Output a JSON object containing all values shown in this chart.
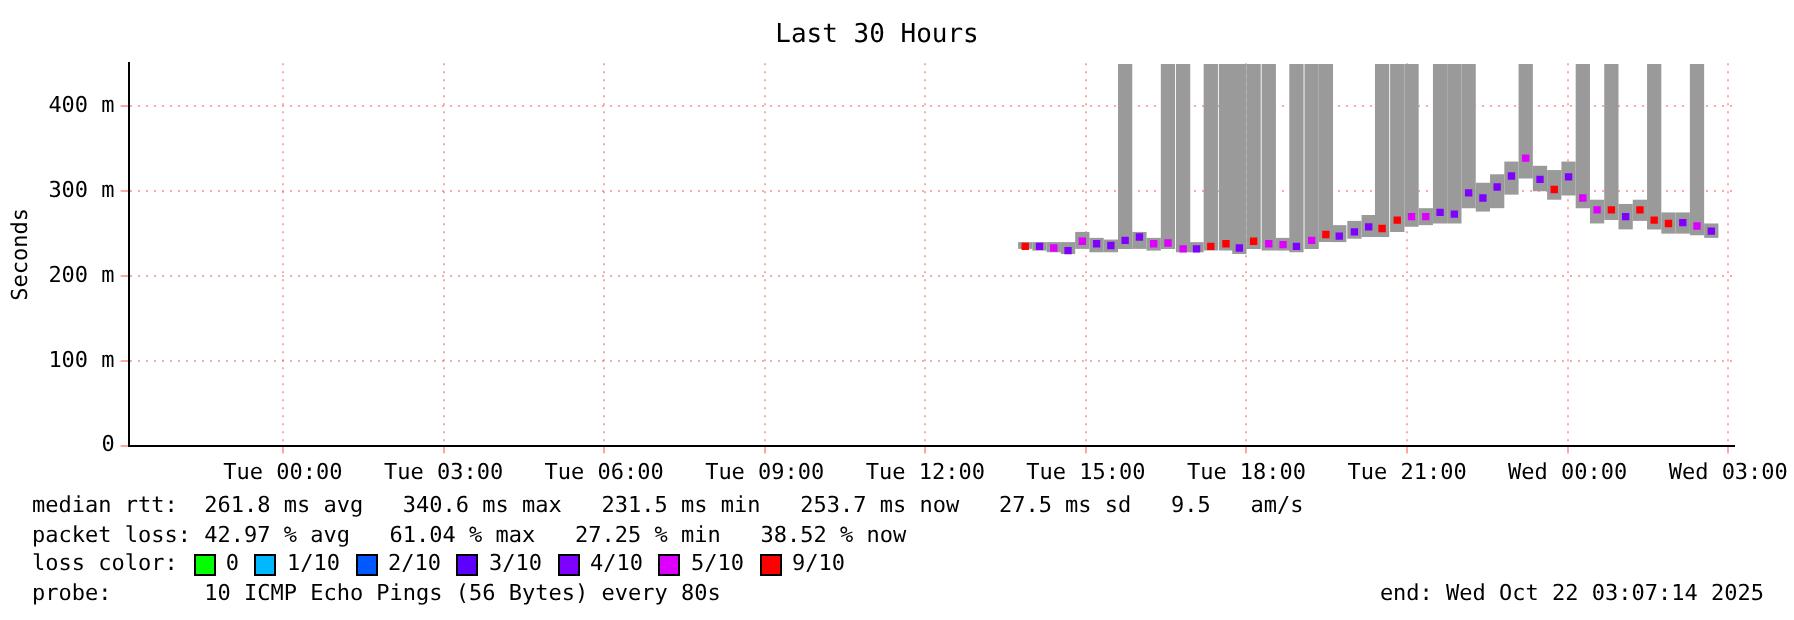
{
  "chart_data": {
    "type": "scatter",
    "marker": "square",
    "title": "Last 30 Hours",
    "ylabel": "Seconds",
    "legend_title": "loss color:",
    "legend": "bottom",
    "grid": true,
    "xlim": [
      "2025-10-20T21:07",
      "2025-10-22T03:07"
    ],
    "xticks": [
      {
        "value": "2025-10-21T00:00",
        "label": "Tue 00:00"
      },
      {
        "value": "2025-10-21T03:00",
        "label": "Tue 03:00"
      },
      {
        "value": "2025-10-21T06:00",
        "label": "Tue 06:00"
      },
      {
        "value": "2025-10-21T09:00",
        "label": "Tue 09:00"
      },
      {
        "value": "2025-10-21T12:00",
        "label": "Tue 12:00"
      },
      {
        "value": "2025-10-21T15:00",
        "label": "Tue 15:00"
      },
      {
        "value": "2025-10-21T18:00",
        "label": "Tue 18:00"
      },
      {
        "value": "2025-10-21T21:00",
        "label": "Tue 21:00"
      },
      {
        "value": "2025-10-22T00:00",
        "label": "Wed 00:00"
      },
      {
        "value": "2025-10-22T03:00",
        "label": "Wed 03:00"
      }
    ],
    "ylim": [
      0,
      451
    ],
    "yticks": [
      0,
      {
        "value": 100,
        "label": "100 m"
      },
      {
        "value": 200,
        "label": "200 m"
      },
      {
        "value": 300,
        "label": "300 m"
      },
      {
        "value": 400,
        "label": "400 m"
      }
    ],
    "x": [
      "2025-10-21T13:52",
      "2025-10-21T14:08",
      "2025-10-21T14:24",
      "2025-10-21T14:40",
      "2025-10-21T14:56",
      "2025-10-21T15:12",
      "2025-10-21T15:28",
      "2025-10-21T15:44",
      "2025-10-21T16:00",
      "2025-10-21T16:16",
      "2025-10-21T16:32",
      "2025-10-21T16:49",
      "2025-10-21T17:04",
      "2025-10-21T17:20",
      "2025-10-21T17:37",
      "2025-10-21T17:52",
      "2025-10-21T18:08",
      "2025-10-21T18:25",
      "2025-10-21T18:41",
      "2025-10-21T18:56",
      "2025-10-21T19:13",
      "2025-10-21T19:29",
      "2025-10-21T19:44",
      "2025-10-21T20:01",
      "2025-10-21T20:17",
      "2025-10-21T20:32",
      "2025-10-21T20:49",
      "2025-10-21T21:05",
      "2025-10-21T21:21",
      "2025-10-21T21:37",
      "2025-10-21T21:53",
      "2025-10-21T22:09",
      "2025-10-21T22:25",
      "2025-10-21T22:41",
      "2025-10-21T22:57",
      "2025-10-21T23:13",
      "2025-10-21T23:29",
      "2025-10-21T23:45",
      "2025-10-22T00:01",
      "2025-10-22T00:17",
      "2025-10-22T00:33",
      "2025-10-22T00:49",
      "2025-10-22T01:05",
      "2025-10-22T01:21",
      "2025-10-22T01:37",
      "2025-10-22T01:53",
      "2025-10-22T02:09",
      "2025-10-22T02:25",
      "2025-10-22T02:41"
    ],
    "series": [
      {
        "name": "0",
        "color": "#00ff00",
        "values": [
          null,
          null,
          null,
          null,
          null,
          null,
          null,
          null,
          null,
          null,
          null,
          null,
          null,
          null,
          null,
          null,
          null,
          null,
          null,
          null,
          null,
          null,
          null,
          null,
          null,
          null,
          null,
          null,
          null,
          null,
          null,
          null,
          null,
          null,
          null,
          null,
          null,
          null,
          null,
          null,
          null,
          null,
          null,
          null,
          null,
          null,
          null,
          null,
          null
        ]
      },
      {
        "name": "1/10",
        "color": "#00b8ff",
        "values": [
          null,
          null,
          null,
          null,
          null,
          null,
          null,
          null,
          null,
          null,
          null,
          null,
          null,
          null,
          null,
          null,
          null,
          null,
          null,
          null,
          null,
          null,
          null,
          null,
          null,
          null,
          null,
          null,
          null,
          null,
          null,
          null,
          null,
          null,
          null,
          null,
          null,
          null,
          null,
          null,
          null,
          null,
          null,
          null,
          null,
          null,
          null,
          null,
          null
        ]
      },
      {
        "name": "2/10",
        "color": "#0059ff",
        "values": [
          null,
          null,
          null,
          null,
          null,
          null,
          null,
          null,
          null,
          null,
          null,
          null,
          null,
          null,
          null,
          null,
          null,
          null,
          null,
          null,
          null,
          null,
          null,
          null,
          null,
          null,
          null,
          null,
          null,
          null,
          null,
          null,
          null,
          null,
          null,
          null,
          null,
          null,
          null,
          null,
          null,
          null,
          null,
          null,
          null,
          null,
          null,
          null,
          null
        ]
      },
      {
        "name": "3/10",
        "color": "#5e00ff",
        "values": [
          null,
          null,
          null,
          null,
          null,
          null,
          null,
          null,
          null,
          null,
          null,
          null,
          null,
          null,
          null,
          null,
          null,
          null,
          null,
          null,
          null,
          null,
          null,
          null,
          null,
          null,
          null,
          null,
          null,
          null,
          null,
          null,
          null,
          null,
          null,
          null,
          null,
          null,
          null,
          null,
          null,
          null,
          null,
          null,
          null,
          null,
          null,
          null,
          null
        ]
      },
      {
        "name": "4/10",
        "color": "#7e00ff",
        "values": [
          null,
          235,
          null,
          230,
          null,
          238,
          236,
          242,
          246,
          null,
          null,
          null,
          232,
          null,
          null,
          233,
          null,
          null,
          null,
          235,
          null,
          null,
          247,
          252,
          258,
          null,
          null,
          null,
          null,
          275,
          273,
          298,
          292,
          305,
          318,
          null,
          314,
          null,
          317,
          null,
          null,
          null,
          270,
          null,
          null,
          null,
          263,
          null,
          253
        ],
        "errors": [
          null,
          [
            230,
            240
          ],
          null,
          [
            226,
            240
          ],
          null,
          [
            228,
            245
          ],
          [
            228,
            243
          ],
          [
            232,
            450
          ],
          [
            232,
            252
          ],
          null,
          null,
          null,
          [
            228,
            240
          ],
          null,
          null,
          [
            226,
            450
          ],
          null,
          null,
          null,
          [
            228,
            450
          ],
          null,
          null,
          [
            240,
            260
          ],
          [
            244,
            265
          ],
          [
            246,
            272
          ],
          null,
          null,
          null,
          null,
          [
            262,
            450
          ],
          [
            262,
            450
          ],
          [
            280,
            450
          ],
          [
            276,
            310
          ],
          [
            280,
            320
          ],
          [
            296,
            335
          ],
          null,
          [
            300,
            330
          ],
          null,
          [
            295,
            335
          ],
          null,
          null,
          null,
          [
            255,
            285
          ],
          null,
          null,
          null,
          [
            250,
            275
          ],
          null,
          [
            245,
            262
          ]
        ]
      },
      {
        "name": "5/10",
        "color": "#dd00ff",
        "values": [
          null,
          null,
          233,
          null,
          241,
          null,
          null,
          null,
          null,
          238,
          239,
          232,
          null,
          null,
          null,
          null,
          null,
          238,
          237,
          null,
          242,
          null,
          null,
          null,
          null,
          null,
          null,
          270,
          270,
          null,
          null,
          null,
          null,
          null,
          null,
          339,
          null,
          null,
          null,
          292,
          278,
          null,
          null,
          null,
          null,
          null,
          null,
          259,
          null
        ],
        "errors": [
          null,
          null,
          [
            228,
            240
          ],
          null,
          [
            232,
            252
          ],
          null,
          null,
          null,
          null,
          [
            230,
            245
          ],
          [
            232,
            450
          ],
          [
            228,
            450
          ],
          null,
          null,
          null,
          null,
          null,
          [
            230,
            450
          ],
          [
            230,
            245
          ],
          null,
          [
            232,
            450
          ],
          null,
          null,
          null,
          null,
          null,
          null,
          [
            258,
            450
          ],
          [
            260,
            280
          ],
          null,
          null,
          null,
          null,
          null,
          null,
          [
            315,
            450
          ],
          null,
          null,
          null,
          [
            280,
            450
          ],
          [
            262,
            290
          ],
          null,
          null,
          null,
          null,
          null,
          null,
          [
            248,
            450
          ],
          null
        ]
      },
      {
        "name": "9/10",
        "color": "#ff0000",
        "values": [
          235,
          null,
          null,
          null,
          null,
          null,
          null,
          null,
          null,
          null,
          null,
          null,
          null,
          235,
          238,
          null,
          241,
          null,
          null,
          null,
          null,
          249,
          null,
          null,
          null,
          256,
          266,
          null,
          null,
          null,
          null,
          null,
          null,
          null,
          null,
          null,
          null,
          302,
          null,
          null,
          null,
          278,
          null,
          278,
          266,
          262,
          null,
          null,
          null
        ],
        "errors": [
          [
            232,
            240
          ],
          null,
          null,
          null,
          null,
          null,
          null,
          null,
          null,
          null,
          null,
          null,
          null,
          [
            230,
            450
          ],
          [
            230,
            450
          ],
          null,
          [
            232,
            450
          ],
          null,
          null,
          null,
          null,
          [
            240,
            450
          ],
          null,
          null,
          null,
          [
            246,
            450
          ],
          [
            252,
            450
          ],
          null,
          null,
          null,
          null,
          null,
          null,
          null,
          null,
          null,
          null,
          [
            290,
            325
          ],
          null,
          null,
          null,
          [
            266,
            450
          ],
          null,
          [
            265,
            290
          ],
          [
            255,
            450
          ],
          [
            250,
            275
          ],
          null,
          null,
          null
        ]
      }
    ],
    "annotations": [
      "median rtt:  261.8 ms avg   340.6 ms max   231.5 ms min   253.7 ms now   27.5 ms sd   9.5   am/s",
      "packet loss: 42.97 % avg   61.04 % max   27.25 % min   38.52 % now",
      "probe:       10 ICMP Echo Pings (56 Bytes) every 80s",
      "end: Wed Oct 22 03:07:14 2025"
    ]
  }
}
